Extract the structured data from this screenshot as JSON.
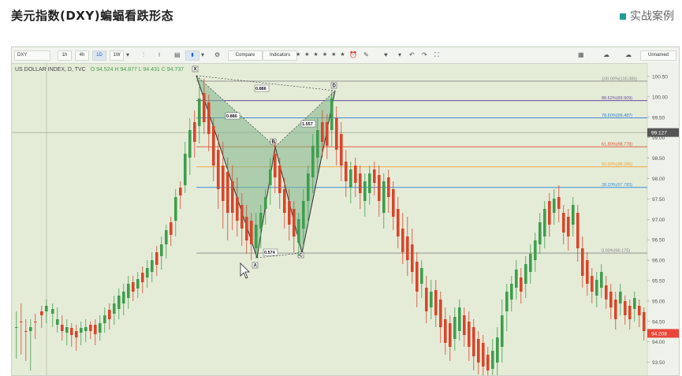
{
  "slide": {
    "title": "美元指数(DXY)蝙蝠看跌形态",
    "tag": "实战案例",
    "accent": "#1f9c9a"
  },
  "toolbar": {
    "symbol": "DXY",
    "intervals": [
      "1h",
      "4h",
      "1D",
      "1W"
    ],
    "active_interval": "1D",
    "compare_label": "Compare",
    "indicators_label": "Indicators",
    "unnamed_label": "Unnamed"
  },
  "legend": {
    "symbol_label": "US DOLLAR INDEX, D, TVC",
    "ohlc": "O 94.524  H 94.877  L 94.431  C 94.737"
  },
  "price_axis": {
    "ticks": [
      "100.50",
      "100.00",
      "99.50",
      "99.00",
      "98.50",
      "98.00",
      "97.50",
      "97.00",
      "96.50",
      "96.00",
      "95.50",
      "95.00",
      "94.50",
      "94.00",
      "93.50"
    ],
    "current_price": "94.208",
    "cross_price": "99.127",
    "colors": {
      "up": "#3f9e4d",
      "down": "#d9452b",
      "price_tag": "#e8463a",
      "cross_tag": "#555555"
    }
  },
  "pattern": {
    "points": [
      "X",
      "A",
      "B",
      "C",
      "D"
    ],
    "ratios": [
      "0.886",
      "0.886",
      "0.574",
      "1.557"
    ],
    "fill_color": "#7fb48a",
    "line_color": "#2e2e2e"
  },
  "fib_levels": [
    {
      "label": "100.00%(100.386)",
      "price": 100.386,
      "color": "#888888"
    },
    {
      "label": "88.62%(99.909)",
      "price": 99.909,
      "color": "#6a4c9c"
    },
    {
      "label": "78.60%(99.487)",
      "price": 99.487,
      "color": "#2f7ad6"
    },
    {
      "label": "61.80%(98.778)",
      "price": 98.778,
      "color": "#e04a2a"
    },
    {
      "label": "50.00%(98.285)",
      "price": 98.285,
      "color": "#f0a030"
    },
    {
      "label": "38.20%(97.783)",
      "price": 97.783,
      "color": "#3b8fd9"
    },
    {
      "label": "0.00%(96.175)",
      "price": 96.175,
      "color": "#888888"
    }
  ]
}
